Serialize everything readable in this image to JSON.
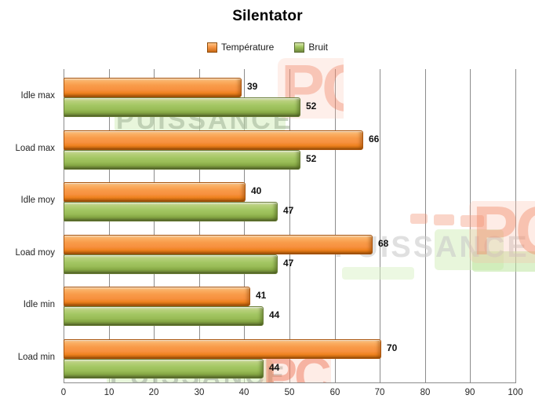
{
  "watermark": {
    "brand": "PUISSANCE",
    "suffix": "PC"
  },
  "chart_data": {
    "type": "bar",
    "orientation": "horizontal",
    "title": "Silentator",
    "categories": [
      "Idle max",
      "Load max",
      "Idle moy",
      "Load moy",
      "Idle min",
      "Load min"
    ],
    "series": [
      {
        "name": "Température",
        "color": "#F79646",
        "values": [
          39,
          66,
          40,
          68,
          41,
          70
        ]
      },
      {
        "name": "Bruit",
        "color": "#9BBB59",
        "values": [
          52,
          52,
          47,
          47,
          44,
          44
        ]
      }
    ],
    "xlim": [
      0,
      100
    ],
    "x_ticks": [
      0,
      10,
      20,
      30,
      40,
      50,
      60,
      70,
      80,
      90,
      100
    ],
    "grid": "vertical-only",
    "legend_position": "top-center",
    "value_labels": "outside-end"
  }
}
